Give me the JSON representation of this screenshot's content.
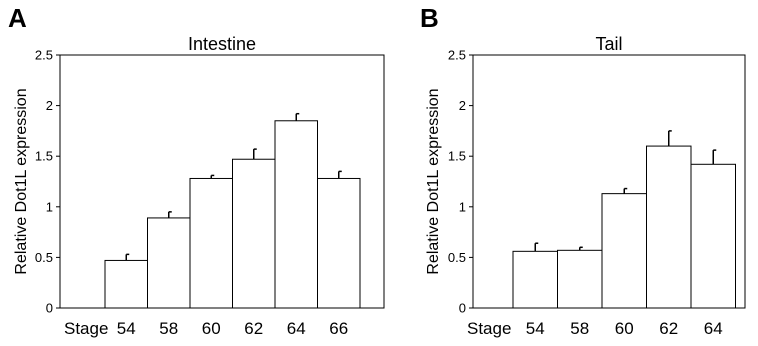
{
  "figure": {
    "panels": [
      {
        "letter": "A"
      },
      {
        "letter": "B"
      }
    ]
  },
  "chart_data": [
    {
      "type": "bar",
      "panel": "A",
      "title": "Intestine",
      "xlabel": "Stage",
      "ylabel": "Relative Dot1L expression",
      "categories": [
        "54",
        "58",
        "60",
        "62",
        "64",
        "66"
      ],
      "values": [
        0.47,
        0.89,
        1.28,
        1.47,
        1.85,
        1.28
      ],
      "errors": [
        0.06,
        0.06,
        0.03,
        0.1,
        0.07,
        0.07
      ],
      "ylim": [
        0,
        2.5
      ],
      "yticks": [
        "0",
        "0.5",
        "1",
        "1.5",
        "2",
        "2.5"
      ],
      "grid": false,
      "colors": {
        "bar_fill": "#ffffff",
        "bar_stroke": "#000000"
      }
    },
    {
      "type": "bar",
      "panel": "B",
      "title": "Tail",
      "xlabel": "Stage",
      "ylabel": "Relative Dot1L expression",
      "categories": [
        "54",
        "58",
        "60",
        "62",
        "64"
      ],
      "values": [
        0.56,
        0.57,
        1.13,
        1.6,
        1.42
      ],
      "errors": [
        0.08,
        0.03,
        0.05,
        0.15,
        0.14
      ],
      "ylim": [
        0,
        2.5
      ],
      "yticks": [
        "0",
        "0.5",
        "1",
        "1.5",
        "2",
        "2.5"
      ],
      "grid": false,
      "colors": {
        "bar_fill": "#ffffff",
        "bar_stroke": "#000000"
      }
    }
  ]
}
